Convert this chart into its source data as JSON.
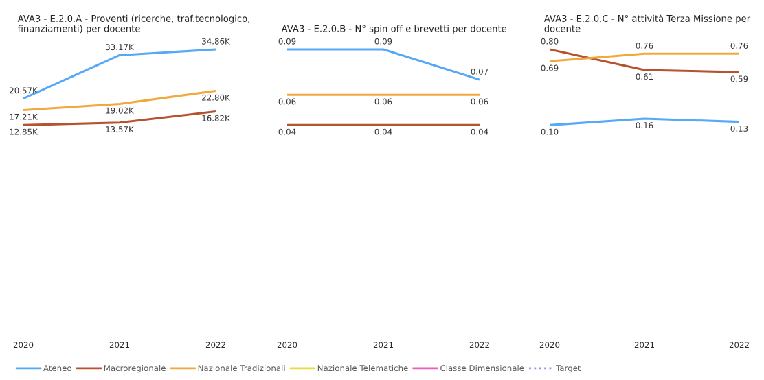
{
  "chart_data": [
    {
      "type": "line",
      "title": "AVA3 - E.2.0.A - Proventi (ricerche, traf.tecnologico, finanziamenti) per docente",
      "categories": [
        "2020",
        "2021",
        "2022"
      ],
      "tick_labels": "x",
      "legend": "bottom",
      "series": [
        {
          "name": "Ateneo",
          "color": "#56a9f7",
          "values": [
            20570,
            33170,
            34860
          ],
          "value_labels": [
            "20.57K",
            "33.17K",
            "34.86K"
          ]
        },
        {
          "name": "Macroregionale",
          "color": "#b5532f",
          "values": [
            12850,
            13570,
            16820
          ],
          "value_labels": [
            "12.85K",
            "13.57K",
            "16.82K"
          ]
        },
        {
          "name": "Nazionale Tradizionali",
          "color": "#f2a93b",
          "values": [
            17210,
            19020,
            22800
          ],
          "value_labels": [
            "17.21K",
            "19.02K",
            "22.80K"
          ]
        },
        {
          "name": "Nazionale Telematiche",
          "color": "#e8dc3c",
          "values": [
            null,
            null,
            null
          ]
        },
        {
          "name": "Classe Dimensionale",
          "color": "#eb5fb8",
          "values": [
            null,
            null,
            null
          ]
        },
        {
          "name": "Target",
          "color": "#9c8fe3",
          "line_style": "dotted",
          "values": [
            null,
            null,
            null
          ]
        }
      ]
    },
    {
      "type": "line",
      "title": "AVA3 - E.2.0.B - N° spin off e brevetti per docente",
      "categories": [
        "2020",
        "2021",
        "2022"
      ],
      "tick_labels": "x",
      "series": [
        {
          "color": "#56a9f7",
          "values": [
            0.09,
            0.09,
            0.07
          ],
          "value_labels": [
            "0.09",
            "0.09",
            "0.07"
          ]
        },
        {
          "color": "#b5532f",
          "values": [
            0.04,
            0.04,
            0.04
          ],
          "value_labels": [
            "0.04",
            "0.04",
            "0.04"
          ]
        },
        {
          "color": "#f2a93b",
          "values": [
            0.06,
            0.06,
            0.06
          ],
          "value_labels": [
            "0.06",
            "0.06",
            "0.06"
          ]
        }
      ]
    },
    {
      "type": "line",
      "title": "AVA3 - E.2.0.C - N° attività Terza Missione per docente",
      "categories": [
        "2020",
        "2021",
        "2022"
      ],
      "tick_labels": "x",
      "series": [
        {
          "color": "#56a9f7",
          "values": [
            0.1,
            0.16,
            0.13
          ],
          "value_labels": [
            "0.10",
            "0.16",
            "0.13"
          ]
        },
        {
          "color": "#b5532f",
          "values": [
            0.8,
            0.61,
            0.59
          ],
          "value_labels": [
            "0.80",
            "0.61",
            "0.59"
          ]
        },
        {
          "color": "#f2a93b",
          "values": [
            0.69,
            0.76,
            0.76
          ],
          "value_labels": [
            "0.69",
            "0.76",
            "0.76"
          ]
        }
      ]
    }
  ]
}
